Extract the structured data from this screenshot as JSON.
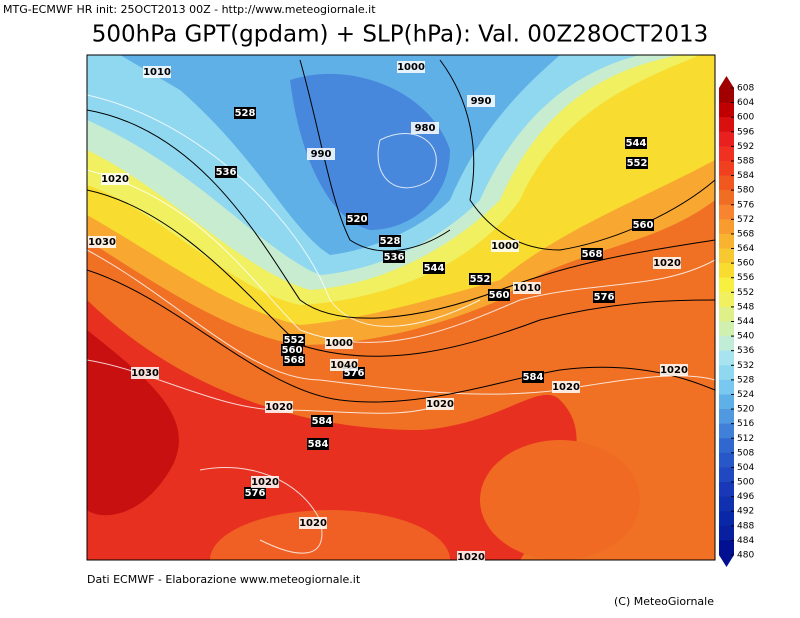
{
  "header": "MTG-ECMWF HR init: 25OCT2013 00Z - http://www.meteogiornale.it",
  "title": "500hPa GPT(gpdam) + SLP(hPa): Val. 00Z28OCT2013",
  "gpdam_labels": [
    528,
    536,
    520,
    528,
    536,
    544,
    552,
    560,
    544,
    552,
    560,
    568,
    576,
    552,
    560,
    568,
    576,
    584,
    584,
    584,
    576
  ],
  "slp_labels": [
    1010,
    1000,
    990,
    980,
    990,
    1020,
    1030,
    1000,
    1010,
    1020,
    1000,
    1040,
    1030,
    1020,
    1020,
    1020,
    1020,
    1020,
    1020,
    1020
  ],
  "colorbar": {
    "ticks": [
      608,
      604,
      600,
      596,
      592,
      588,
      584,
      580,
      576,
      572,
      568,
      564,
      560,
      556,
      552,
      548,
      544,
      540,
      536,
      532,
      528,
      524,
      520,
      516,
      512,
      508,
      504,
      500,
      496,
      492,
      488,
      484,
      480
    ],
    "colors": [
      "#a00000",
      "#c00000",
      "#d81010",
      "#e82020",
      "#f03020",
      "#f04020",
      "#f05820",
      "#f06e24",
      "#f88430",
      "#f89c30",
      "#f8b430",
      "#f8c830",
      "#f8dc30",
      "#f8f040",
      "#f0f060",
      "#e0f088",
      "#d0f0b0",
      "#c0ecd8",
      "#a8e4f0",
      "#90d8f0",
      "#78c8f0",
      "#60b0e8",
      "#5098e0",
      "#4080d8",
      "#3068d0",
      "#2858c8",
      "#2048c0",
      "#1838b8",
      "#1030b0",
      "#0828a8",
      "#0820a0",
      "#001090"
    ]
  },
  "footer": "Dati ECMWF - Elaborazione www.meteogiornale.it",
  "credit": "(C) MeteoGiornale"
}
